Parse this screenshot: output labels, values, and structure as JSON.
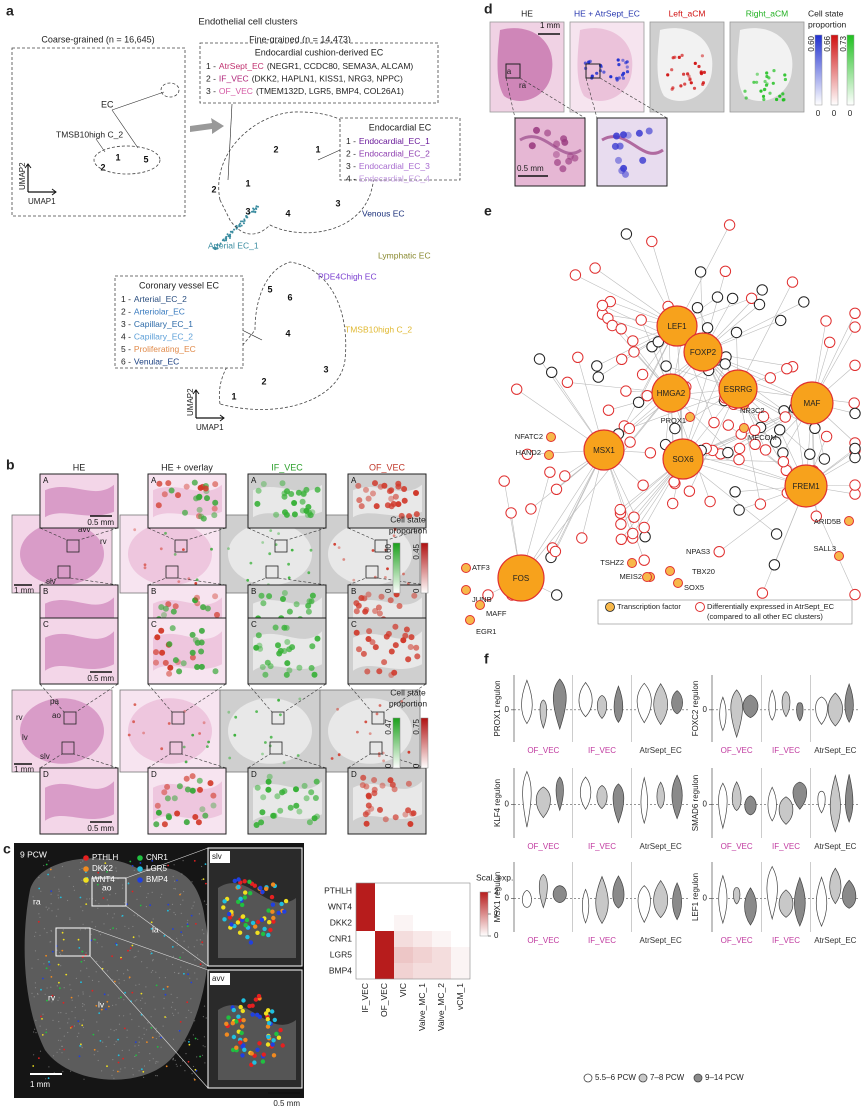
{
  "panel_a": {
    "label": "a",
    "title": "Endothelial cell clusters",
    "coarse": "Coarse-grained (n = 16,645)",
    "fine": "Fine-grained (n = 14,473)",
    "ec": "EC",
    "tmsb10_coarse": "TMSB10high C_2",
    "coarse_clusters": [
      "1",
      "2",
      "5"
    ],
    "axis_umap2": "UMAP2",
    "axis_umap1": "UMAP1",
    "cushion": {
      "title": "Endocardial cushion-derived EC",
      "items": [
        {
          "index": "1 -",
          "name": "AtrSept_EC",
          "genes": "(NEGR1, CCDC80, SEMA3A, ALCAM)",
          "color": "#c0306e"
        },
        {
          "index": "2 -",
          "name": "IF_VEC",
          "genes": "(DKK2, HAPLN1, KISS1, NRG3, NPPC)",
          "color": "#b0267a"
        },
        {
          "index": "3 -",
          "name": "OF_VEC",
          "genes": "(TMEM132D, LGR5, BMP4, COL26A1)",
          "color": "#d45aa4"
        }
      ]
    },
    "endocardial": {
      "title": "Endocardial EC",
      "items": [
        {
          "index": "1 -",
          "name": "Endocardial_EC_1",
          "color": "#6a1b9a"
        },
        {
          "index": "2 -",
          "name": "Endocardial_EC_2",
          "color": "#8e3fb0"
        },
        {
          "index": "3 -",
          "name": "Endocardial_EC_3",
          "color": "#a86cd0"
        },
        {
          "index": "4 -",
          "name": "Endocardial_EC_4",
          "color": "#c39be0"
        }
      ]
    },
    "coronary": {
      "title": "Coronary vessel EC",
      "items": [
        {
          "index": "1 -",
          "name": "Arterial_EC_2",
          "color": "#2b4f80"
        },
        {
          "index": "2 -",
          "name": "Arteriolar_EC",
          "color": "#3a7bbf"
        },
        {
          "index": "3 -",
          "name": "Capillary_EC_1",
          "color": "#2c6aa8"
        },
        {
          "index": "4 -",
          "name": "Capillary_EC_2",
          "color": "#5ea0d8"
        },
        {
          "index": "5 -",
          "name": "Proliferating_EC",
          "color": "#e08a4a"
        },
        {
          "index": "6 -",
          "name": "Venular_EC",
          "color": "#1a3f80"
        }
      ]
    },
    "labels": {
      "venous": "Venous EC",
      "arterial": "Arterial EC_1",
      "lymphatic": "Lymphatic EC",
      "pde4c": "PDE4Chigh EC",
      "tmsb10": "TMSB10high C_2"
    },
    "label_colors": {
      "venous": "#1a2f7a",
      "arterial": "#3a8ca0",
      "lymphatic": "#8a8a30",
      "pde4c": "#7a3fd0",
      "tmsb10": "#e0b830"
    },
    "fine_clusters": {
      "endocardial": [
        "1",
        "2",
        "3",
        "4"
      ],
      "cushion": [
        "1",
        "2",
        "3"
      ],
      "coronary": [
        "1",
        "2",
        "3",
        "4",
        "5",
        "6"
      ]
    }
  },
  "panel_b": {
    "label": "b",
    "columns": [
      "HE",
      "HE + overlay",
      "IF_VEC",
      "OF_VEC"
    ],
    "column_colors": [
      "#222222",
      "#222222",
      "#2ca02c",
      "#c0392b"
    ],
    "zoom_letters": [
      "A",
      "B",
      "C",
      "D"
    ],
    "scale_zoom": "0.5 mm",
    "scale_section": "1 mm",
    "regions_top": [
      "avv",
      "rv",
      "slv"
    ],
    "regions_bottom": [
      "rv",
      "pa",
      "ao",
      "lv",
      "slv"
    ],
    "legend_title": [
      "Cell state",
      "proportion"
    ],
    "legend_top": {
      "green_max": "0.60",
      "green_min": "0",
      "red_max": "0.45",
      "red_min": "0"
    },
    "legend_bottom": {
      "green_max": "0.47",
      "green_min": "0",
      "red_max": "0.75",
      "red_min": "0"
    }
  },
  "panel_c": {
    "label": "c",
    "stage": "9 PCW",
    "legend": [
      {
        "name": "PTHLH",
        "color": "#e52020"
      },
      {
        "name": "DKK2",
        "color": "#f08a20"
      },
      {
        "name": "WNT4",
        "color": "#f0e020"
      },
      {
        "name": "CNR1",
        "color": "#20c040"
      },
      {
        "name": "LGR5",
        "color": "#20c0e0"
      },
      {
        "name": "BMP4",
        "color": "#2040e0"
      }
    ],
    "regions": [
      "ra",
      "ao",
      "la",
      "rv",
      "lv"
    ],
    "insets": [
      "slv",
      "avv"
    ],
    "scale_section": "1 mm",
    "scale_zoom": "0.5 mm",
    "heatmap": {
      "rows": [
        "PTHLH",
        "WNT4",
        "DKK2",
        "CNR1",
        "LGR5",
        "BMP4"
      ],
      "columns": [
        "IF_VEC",
        "OF_VEC",
        "VIC",
        "Valve_MC_1",
        "Valve_MC_2",
        "vCM_1"
      ],
      "values": [
        [
          2,
          0,
          0,
          0,
          0,
          0
        ],
        [
          2,
          0,
          0,
          0,
          0,
          0
        ],
        [
          2,
          0,
          0.1,
          0,
          0,
          0
        ],
        [
          0,
          2,
          0.3,
          0.2,
          0.1,
          0
        ],
        [
          0,
          2,
          0.5,
          0.4,
          0.3,
          0.1
        ],
        [
          0,
          2,
          0.4,
          0.3,
          0.3,
          0.1
        ]
      ],
      "color": "#b71c1c",
      "clim": [
        0,
        2
      ],
      "ticks": [
        0,
        1,
        2
      ],
      "colorbar_title": "Scal. exp."
    }
  },
  "panel_d": {
    "label": "d",
    "columns": [
      "HE",
      "HE + AtrSept_EC",
      "Left_aCM",
      "Right_aCM"
    ],
    "column_colors": [
      "#222222",
      "#2a3ab0",
      "#d01010",
      "#20b020"
    ],
    "regions": [
      "la",
      "ra"
    ],
    "scale_section": "1 mm",
    "scale_zoom": "0.5 mm",
    "legend_title": [
      "Cell state",
      "proportion"
    ],
    "bars": [
      {
        "max": "0.60",
        "min": "0",
        "color": "#2030d0"
      },
      {
        "max": "0.66",
        "min": "0",
        "color": "#d01010"
      },
      {
        "max": "0.73",
        "min": "0",
        "color": "#20c020"
      }
    ]
  },
  "panel_e": {
    "label": "e",
    "hubs": [
      "LEF1",
      "FOXP2",
      "HMGA2",
      "ESRRG",
      "MAF",
      "MSX1",
      "SOX6",
      "FREM1",
      "FOS"
    ],
    "genes": [
      "NR3C2",
      "PROX1",
      "MECOM",
      "NFATC2",
      "HAND2",
      "ATF3",
      "JUNB",
      "MAFF",
      "EGR1",
      "NPAS3",
      "TSHZ2",
      "TBX20",
      "MEIS2",
      "SOX5",
      "ARID5B",
      "SALL3"
    ],
    "legend": [
      "Transcription factor",
      "Differentially expressed in AtrSept_EC",
      "(compared to all other EC clusters)"
    ]
  },
  "panel_f": {
    "label": "f",
    "regulons": [
      "PROX1 regulon",
      "FOXC2 regulon",
      "KLF4 regulon",
      "SMAD6 regulon",
      "MSX1 regulon",
      "LEF1 regulon"
    ],
    "groups": [
      "OF_VEC",
      "IF_VEC",
      "AtrSept_EC"
    ],
    "group_colors": [
      "#c0399f",
      "#c0399f",
      "#333333"
    ],
    "ytick": 0,
    "legend": [
      "5.5–6 PCW",
      "7–8 PCW",
      "9–14 PCW"
    ],
    "stage_colors": [
      "#ffffff",
      "#c8c8c8",
      "#8a8a8a"
    ]
  }
}
